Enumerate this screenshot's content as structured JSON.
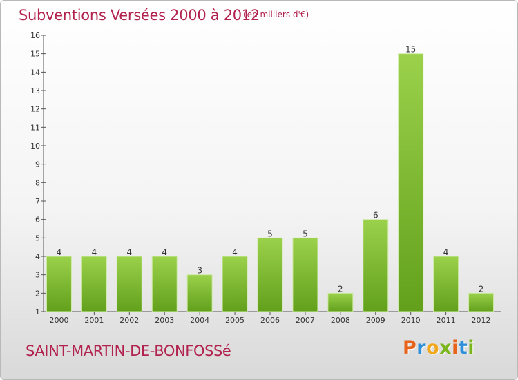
{
  "header": {
    "title": "Subventions Versées 2000 à 2012",
    "unit": "(en milliers d'€)"
  },
  "footer": {
    "place": "SAINT-MARTIN-DE-BONFOSSé",
    "logo": [
      "P",
      "r",
      "o",
      "x",
      "i",
      "t",
      "i"
    ],
    "logo_colors": [
      "#e8631a",
      "#2f8fd8",
      "#f2a81d",
      "#7ab51d",
      "#e8631a",
      "#2f8fd8",
      "#7ab51d"
    ]
  },
  "chart_data": {
    "type": "bar",
    "title": "Subventions Versées 2000 à 2012",
    "subtitle": "(en milliers d'€)",
    "xlabel": "",
    "ylabel": "",
    "categories": [
      "2000",
      "2001",
      "2002",
      "2003",
      "2004",
      "2005",
      "2006",
      "2007",
      "2008",
      "2009",
      "2010",
      "2011",
      "2012"
    ],
    "values": [
      4,
      4,
      4,
      4,
      3,
      4,
      5,
      5,
      2,
      6,
      15,
      4,
      2
    ],
    "ylim": [
      1,
      16
    ],
    "yticks": [
      1,
      2,
      3,
      4,
      5,
      6,
      7,
      8,
      9,
      10,
      11,
      12,
      13,
      14,
      15,
      16
    ],
    "grid": false,
    "legend": "none",
    "bar_color_top": "#9bd14b",
    "bar_color_bottom": "#62a01c"
  }
}
